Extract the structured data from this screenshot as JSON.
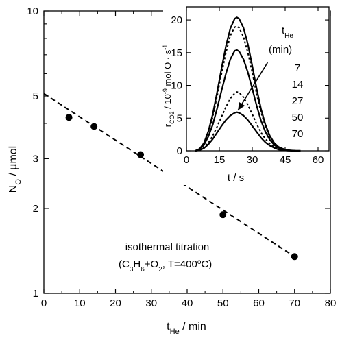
{
  "chart_data": [
    {
      "type": "scatter",
      "title": "",
      "xlabel_main": "t",
      "xlabel_sub": "He",
      "xlabel_rest": " / min",
      "ylabel_main": "N",
      "ylabel_sub": "O",
      "ylabel_rest": " / µmol",
      "xlim": [
        0,
        80
      ],
      "ylim": [
        1,
        10
      ],
      "y_scale": "log",
      "x_ticks": [
        0,
        10,
        20,
        30,
        40,
        50,
        60,
        70,
        80
      ],
      "y_ticks": [
        1,
        2,
        3,
        5,
        10
      ],
      "series": [
        {
          "type": "scatter",
          "x": [
            7,
            14,
            27,
            50,
            70
          ],
          "y": [
            4.2,
            3.9,
            3.1,
            1.9,
            1.35
          ]
        },
        {
          "type": "dashed-line",
          "x": [
            0,
            70
          ],
          "y": [
            5.1,
            1.35
          ]
        }
      ],
      "annotation_line1": "isothermal titration",
      "annotation_line2": "(C3H6+O2, T=400ºC)",
      "color": "#000000"
    },
    {
      "type": "line",
      "title": "",
      "xlabel": "t / s",
      "ylabel": "rCO2 / 10-9 mol O · s-1",
      "xlim": [
        0,
        65
      ],
      "ylim": [
        0,
        22
      ],
      "x_ticks": [
        0,
        15,
        30,
        45,
        60
      ],
      "y_ticks": [
        0,
        5,
        10,
        15,
        20
      ],
      "legend_title": "tHe",
      "legend_unit": "(min)",
      "legend_values": [
        "7",
        "14",
        "27",
        "50",
        "70"
      ],
      "series": [
        {
          "name": "7",
          "style": "solid",
          "x": [
            4,
            6,
            8,
            10,
            12,
            14,
            16,
            18,
            20,
            22,
            23,
            24,
            26,
            28,
            30,
            32,
            34,
            36,
            38,
            40,
            42,
            44,
            46,
            48,
            50,
            52
          ],
          "y": [
            0,
            0.3,
            1.2,
            3,
            5.6,
            9,
            12.6,
            16,
            18.7,
            20.2,
            20.4,
            20.2,
            18.8,
            16.3,
            13,
            9.5,
            6.4,
            4,
            2.3,
            1.2,
            0.6,
            0.3,
            0.1,
            0.05,
            0,
            0
          ]
        },
        {
          "name": "14",
          "style": "dotted",
          "x": [
            4,
            6,
            8,
            10,
            12,
            14,
            16,
            18,
            20,
            22,
            23,
            24,
            26,
            28,
            30,
            32,
            34,
            36,
            38,
            40,
            42,
            44,
            46,
            48,
            50,
            52
          ],
          "y": [
            0,
            0.3,
            1.1,
            2.8,
            5.2,
            8.4,
            11.8,
            15,
            17.6,
            18.9,
            19,
            18.8,
            17.4,
            15,
            12,
            8.7,
            5.9,
            3.7,
            2.1,
            1.1,
            0.5,
            0.25,
            0.1,
            0.04,
            0,
            0
          ]
        },
        {
          "name": "27",
          "style": "solid",
          "x": [
            4,
            6,
            8,
            10,
            12,
            14,
            16,
            18,
            20,
            22,
            23,
            24,
            26,
            28,
            30,
            32,
            34,
            36,
            38,
            40,
            42,
            44,
            46,
            48,
            50,
            52
          ],
          "y": [
            0,
            0.25,
            0.9,
            2.2,
            4,
            6.5,
            9.2,
            11.8,
            14,
            15.3,
            15.4,
            15.2,
            14,
            12,
            9.5,
            6.9,
            4.6,
            2.9,
            1.7,
            0.9,
            0.45,
            0.2,
            0.08,
            0.03,
            0,
            0
          ]
        },
        {
          "name": "50",
          "style": "dotted",
          "x": [
            4,
            6,
            8,
            10,
            12,
            14,
            16,
            18,
            20,
            22,
            23,
            24,
            26,
            28,
            30,
            32,
            34,
            36,
            38,
            40,
            42,
            44,
            46,
            48,
            50,
            52
          ],
          "y": [
            0,
            0.1,
            0.5,
            1.2,
            2.3,
            3.7,
            5.2,
            6.7,
            8,
            8.8,
            9,
            8.9,
            8.2,
            7,
            5.6,
            4.1,
            2.8,
            1.8,
            1.1,
            0.6,
            0.3,
            0.15,
            0.05,
            0.02,
            0,
            0
          ]
        },
        {
          "name": "70",
          "style": "solid",
          "x": [
            4,
            6,
            8,
            10,
            12,
            14,
            16,
            18,
            20,
            22,
            23,
            24,
            26,
            28,
            30,
            32,
            34,
            36,
            38,
            40,
            42,
            44,
            46,
            48,
            50,
            52
          ],
          "y": [
            0,
            0.1,
            0.4,
            1,
            1.8,
            2.8,
            3.8,
            4.7,
            5.4,
            5.8,
            5.9,
            5.8,
            5.4,
            4.7,
            3.8,
            2.9,
            2,
            1.3,
            0.8,
            0.45,
            0.2,
            0.1,
            0.04,
            0.01,
            0,
            0
          ]
        }
      ],
      "arrow": {
        "from": [
          37,
          13.5
        ],
        "to": [
          23.5,
          6.2
        ],
        "meaning": "increasing tHe"
      }
    }
  ]
}
